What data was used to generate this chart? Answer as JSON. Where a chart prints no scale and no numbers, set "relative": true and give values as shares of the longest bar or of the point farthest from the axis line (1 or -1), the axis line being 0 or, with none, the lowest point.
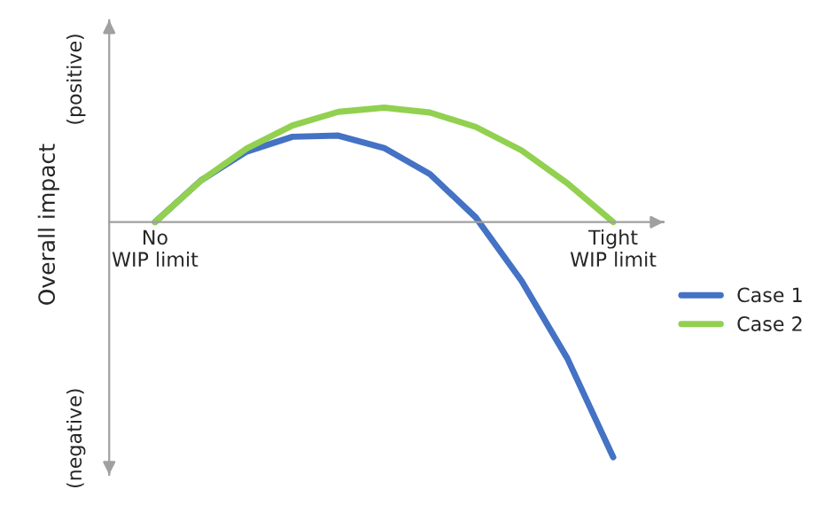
{
  "chart_data": {
    "type": "line",
    "relative": true,
    "categories": [
      "No\nWIP limit",
      null,
      null,
      null,
      null,
      null,
      null,
      null,
      null,
      null,
      "Tight\nWIP limit"
    ],
    "ylabel": "Overall impact",
    "annotations": [
      "(positive)",
      "(negative)"
    ],
    "series": [
      {
        "name": "Case 1",
        "color": "#4472c4",
        "values": [
          0,
          0.177,
          0.3,
          0.363,
          0.368,
          0.315,
          0.204,
          0.02,
          -0.25,
          -0.58,
          -1
        ]
      },
      {
        "name": "Case 2",
        "color": "#92d050",
        "values": [
          0,
          0.176,
          0.313,
          0.411,
          0.469,
          0.487,
          0.466,
          0.405,
          0.305,
          0.165,
          0
        ]
      }
    ],
    "legend": "right",
    "grid": false,
    "marker": "none",
    "line_style": "solid"
  }
}
